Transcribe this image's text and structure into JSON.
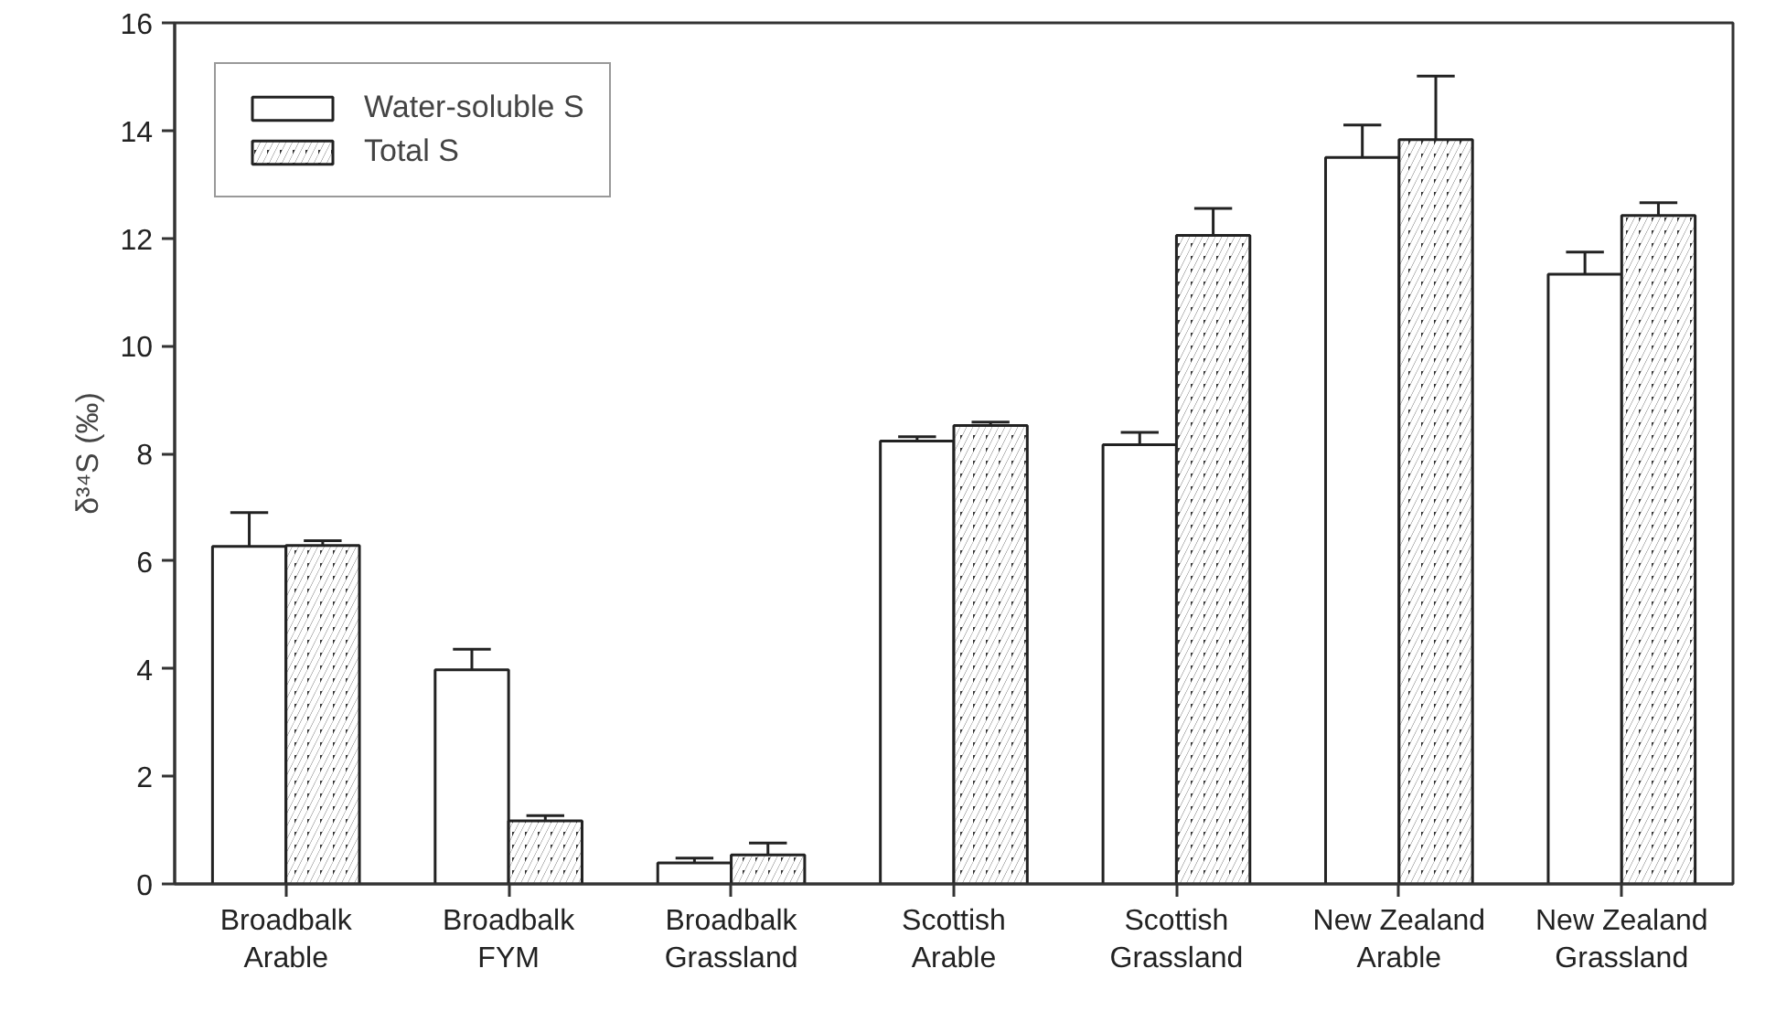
{
  "chart_data": {
    "type": "bar",
    "ylabel": "δ³⁴S (‰)",
    "categories": [
      "Broadbalk\nArable",
      "Broadbalk\nFYM",
      "Broadbalk\nGrassland",
      "Scottish\nArable",
      "Scottish\nGrassland",
      "New Zealand\nArable",
      "New Zealand\nGrassland"
    ],
    "series": [
      {
        "name": "Water-soluble S",
        "color": "#ffffff",
        "values": [
          6.27,
          3.98,
          0.39,
          8.23,
          8.16,
          13.5,
          11.33
        ],
        "errors": [
          [
            6.27,
            6.9
          ],
          [
            3.98,
            4.36
          ],
          [
            0.39,
            0.48
          ],
          [
            8.23,
            8.31
          ],
          [
            8.16,
            8.39
          ],
          [
            13.5,
            14.1
          ],
          [
            11.33,
            11.74
          ]
        ]
      },
      {
        "name": "Total S",
        "color": "#333333",
        "values": [
          6.29,
          1.17,
          0.54,
          8.52,
          12.05,
          13.83,
          12.42
        ],
        "errors": [
          [
            6.29,
            6.38
          ],
          [
            1.17,
            1.27
          ],
          [
            0.54,
            0.76
          ],
          [
            8.52,
            8.58
          ],
          [
            12.05,
            12.55
          ],
          [
            13.83,
            15.01
          ],
          [
            12.42,
            12.66
          ]
        ]
      }
    ],
    "ylim": [
      0,
      16
    ],
    "yticks": [
      0,
      2,
      4,
      6,
      8,
      10,
      12,
      14,
      16
    ],
    "grid": false,
    "legend": "top left"
  }
}
